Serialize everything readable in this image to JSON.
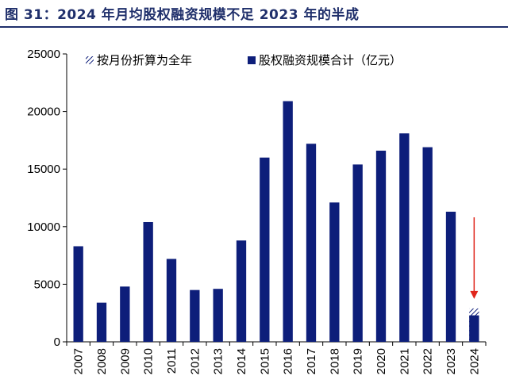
{
  "title": "图 31：2024 年月均股权融资规模不足 2023 年的半成",
  "colors": {
    "bar": "#0d1e7a",
    "title": "#1f2f6b",
    "arrow": "#e0251b",
    "axis": "#000000"
  },
  "chart_data": {
    "type": "bar",
    "categories": [
      "2007",
      "2008",
      "2009",
      "2010",
      "2011",
      "2012",
      "2013",
      "2014",
      "2015",
      "2016",
      "2017",
      "2018",
      "2019",
      "2020",
      "2021",
      "2022",
      "2023",
      "2024"
    ],
    "series": [
      {
        "name": "股权融资规模合计（亿元）",
        "values": [
          8300,
          3400,
          4800,
          10400,
          7200,
          4500,
          4600,
          8800,
          16000,
          20900,
          17200,
          12100,
          15400,
          16600,
          18100,
          16900,
          11300,
          2300
        ]
      },
      {
        "name": "按月份折算为全年",
        "values": [
          null,
          null,
          null,
          null,
          null,
          null,
          null,
          null,
          null,
          null,
          null,
          null,
          null,
          null,
          null,
          null,
          null,
          2900
        ]
      }
    ],
    "ylim": [
      0,
      25000
    ],
    "yticks": [
      0,
      5000,
      10000,
      15000,
      20000,
      25000
    ],
    "legend_position": "top",
    "annotation": "red arrow pointing down to 2024 bar",
    "grid": false
  }
}
